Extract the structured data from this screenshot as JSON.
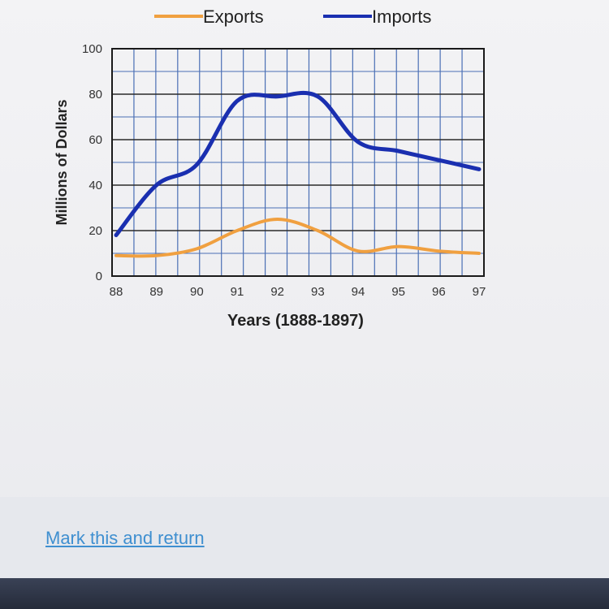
{
  "chart_data": {
    "type": "line",
    "x": [
      88,
      89,
      90,
      91,
      92,
      93,
      94,
      95,
      96,
      97
    ],
    "x_tick_labels": [
      "88",
      "89",
      "90",
      "91",
      "92",
      "93",
      "94",
      "95",
      "96",
      "97"
    ],
    "y_ticks": [
      0,
      20,
      40,
      60,
      80,
      100
    ],
    "ylim": [
      0,
      100
    ],
    "xlabel": "Years (1888-1897)",
    "ylabel": "Millions of Dollars",
    "grid": true,
    "legend_position": "top",
    "series": [
      {
        "name": "Exports",
        "color": "#f0a040",
        "values": [
          9,
          9,
          12,
          20,
          25,
          20,
          11,
          13,
          11,
          10
        ]
      },
      {
        "name": "Imports",
        "color": "#1a2fb0",
        "values": [
          18,
          40,
          49,
          77,
          79,
          79,
          59,
          55,
          51,
          47
        ]
      }
    ]
  },
  "footer": {
    "link_label": "Mark this and return"
  }
}
